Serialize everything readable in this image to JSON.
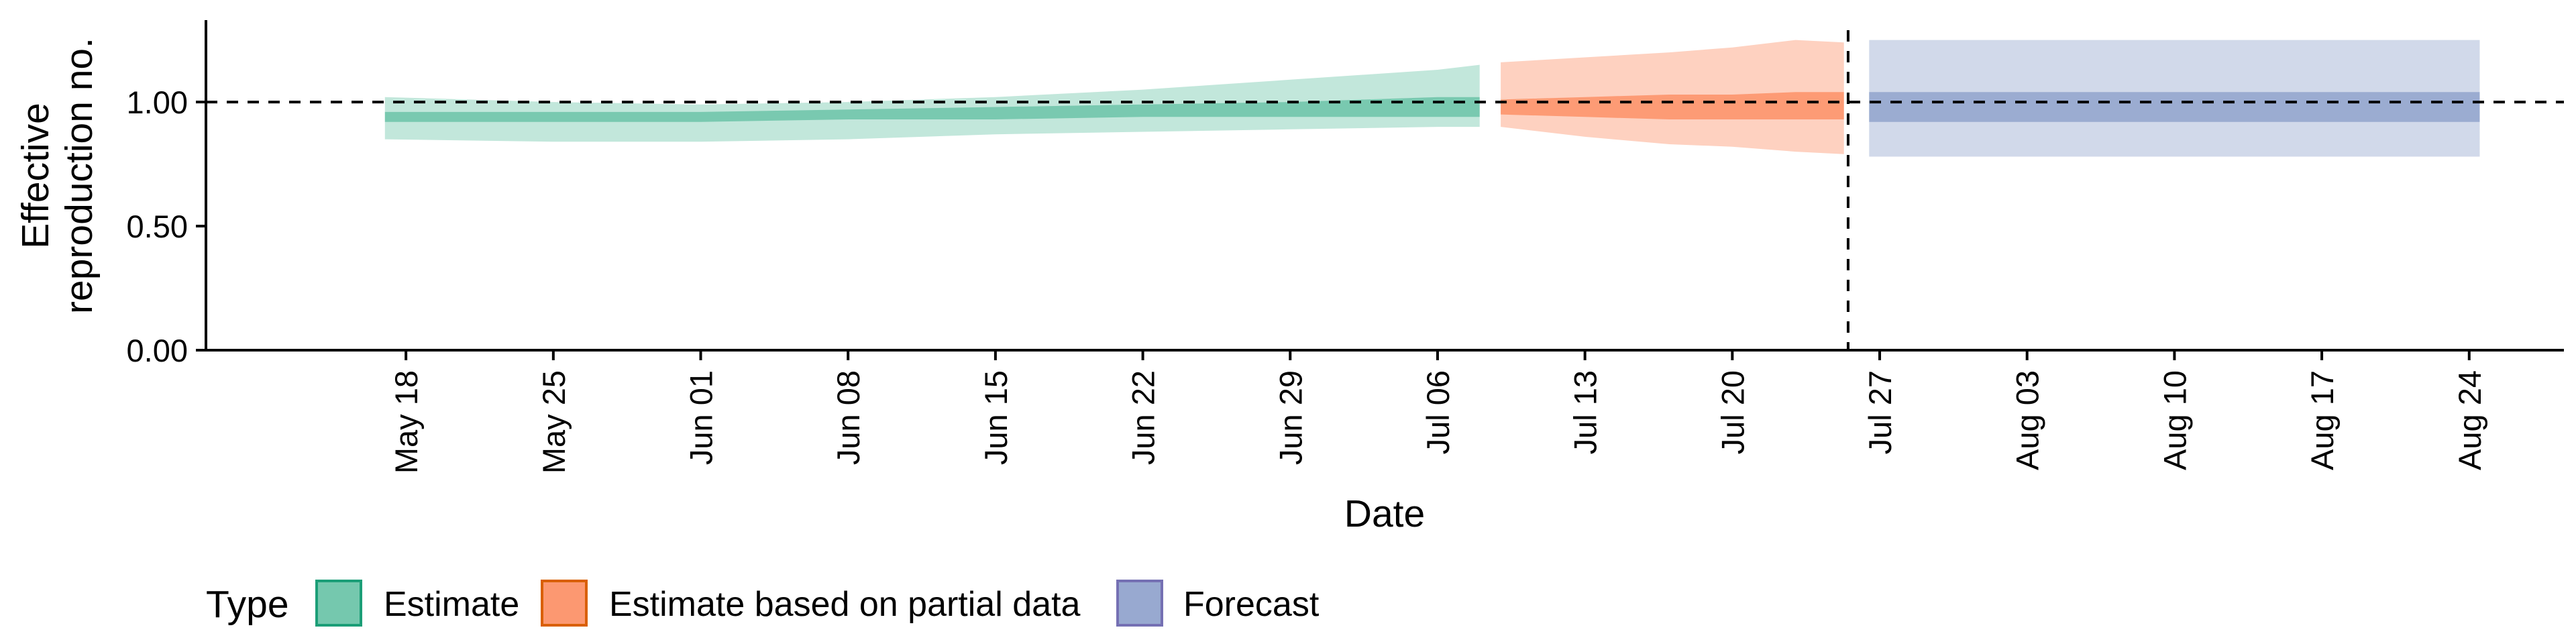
{
  "chart_data": {
    "type": "area",
    "title": "",
    "xlabel": "Date",
    "ylabel_lines": [
      "Effective",
      "reproduction no."
    ],
    "ylim": [
      0,
      1.33
    ],
    "yticks": [
      0,
      0.5,
      1.0
    ],
    "ytick_labels": [
      "0.00",
      "0.50",
      "1.00"
    ],
    "xlim_days": [
      -9.5,
      102.5
    ],
    "xtick_labels": [
      "May 18",
      "May 25",
      "Jun 01",
      "Jun 08",
      "Jun 15",
      "Jun 22",
      "Jun 29",
      "Jul 06",
      "Jul 13",
      "Jul 20",
      "Jul 27",
      "Aug 03",
      "Aug 10",
      "Aug 17",
      "Aug 24"
    ],
    "xtick_days": [
      0,
      7,
      14,
      21,
      28,
      35,
      42,
      49,
      56,
      63,
      70,
      77,
      84,
      91,
      98
    ],
    "reference_line": {
      "y": 1.0,
      "style": "dashed"
    },
    "forecast_date_line": {
      "date": "Jul 25",
      "day": 68.5,
      "style": "dashed"
    },
    "legend": {
      "title": "Type",
      "position": "bottom-left"
    },
    "series": [
      {
        "name": "Estimate",
        "color": "#1b9e77",
        "fill": "#66c2a5",
        "x_days": [
          -1,
          7,
          14,
          21,
          28,
          35,
          42,
          49,
          51
        ],
        "lower90": [
          0.85,
          0.84,
          0.84,
          0.85,
          0.87,
          0.88,
          0.89,
          0.9,
          0.9
        ],
        "upper90": [
          1.02,
          1.0,
          0.99,
          1.0,
          1.02,
          1.05,
          1.09,
          1.13,
          1.15
        ],
        "lower50": [
          0.92,
          0.92,
          0.92,
          0.93,
          0.93,
          0.94,
          0.94,
          0.94,
          0.94
        ],
        "upper50": [
          0.96,
          0.96,
          0.96,
          0.97,
          0.98,
          0.99,
          1.0,
          1.02,
          1.02
        ]
      },
      {
        "name": "Estimate based on partial data",
        "color": "#d95f02",
        "fill": "#fc8d62",
        "x_days": [
          52,
          56,
          60,
          63,
          66,
          68.3
        ],
        "lower90": [
          0.9,
          0.86,
          0.83,
          0.82,
          0.8,
          0.79
        ],
        "upper90": [
          1.16,
          1.18,
          1.2,
          1.22,
          1.25,
          1.24
        ],
        "lower50": [
          0.95,
          0.94,
          0.93,
          0.93,
          0.93,
          0.93
        ],
        "upper50": [
          1.01,
          1.02,
          1.03,
          1.03,
          1.04,
          1.04
        ]
      },
      {
        "name": "Forecast",
        "color": "#7570b3",
        "fill": "#8da0cb",
        "x_days": [
          69.5,
          98.5
        ],
        "lower90": [
          0.78,
          0.78
        ],
        "upper90": [
          1.25,
          1.25
        ],
        "lower50": [
          0.92,
          0.92
        ],
        "upper50": [
          1.04,
          1.04
        ]
      }
    ]
  }
}
